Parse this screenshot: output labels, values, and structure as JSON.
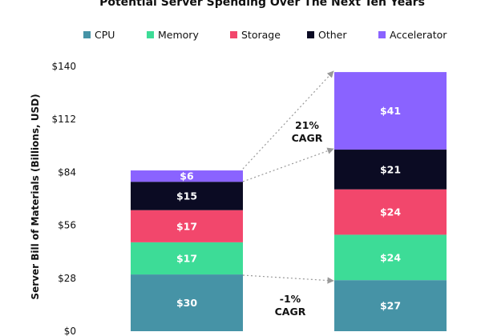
{
  "chart_data": {
    "type": "bar",
    "stacked": true,
    "title": "Potential Server Spending Over The Next Ten Years",
    "xlabel": "",
    "ylabel": "Server Bill of Materials (Billions, USD)",
    "ylim": [
      0,
      140
    ],
    "yticks": [
      "$0",
      "$28",
      "$56",
      "$84",
      "$112",
      "$140"
    ],
    "ytick_values": [
      0,
      28,
      56,
      84,
      112,
      140
    ],
    "categories": [
      "",
      ""
    ],
    "legend_position": "top",
    "grid": false,
    "series": [
      {
        "name": "CPU",
        "color": "#4693a6",
        "values": [
          30,
          27
        ],
        "labels": [
          "$30",
          "$27"
        ]
      },
      {
        "name": "Memory",
        "color": "#3ddc97",
        "values": [
          17,
          24
        ],
        "labels": [
          "$17",
          "$24"
        ]
      },
      {
        "name": "Storage",
        "color": "#f2476c",
        "values": [
          17,
          24
        ],
        "labels": [
          "$17",
          "$24"
        ]
      },
      {
        "name": "Other",
        "color": "#0b0b23",
        "values": [
          15,
          21
        ],
        "labels": [
          "$15",
          "$21"
        ]
      },
      {
        "name": "Accelerator",
        "color": "#8a63ff",
        "values": [
          6,
          41
        ],
        "labels": [
          "$6",
          "$41"
        ]
      }
    ],
    "annotations": [
      {
        "text": [
          "21%",
          "CAGR"
        ]
      },
      {
        "text": [
          "-1%",
          "CAGR"
        ]
      }
    ]
  }
}
